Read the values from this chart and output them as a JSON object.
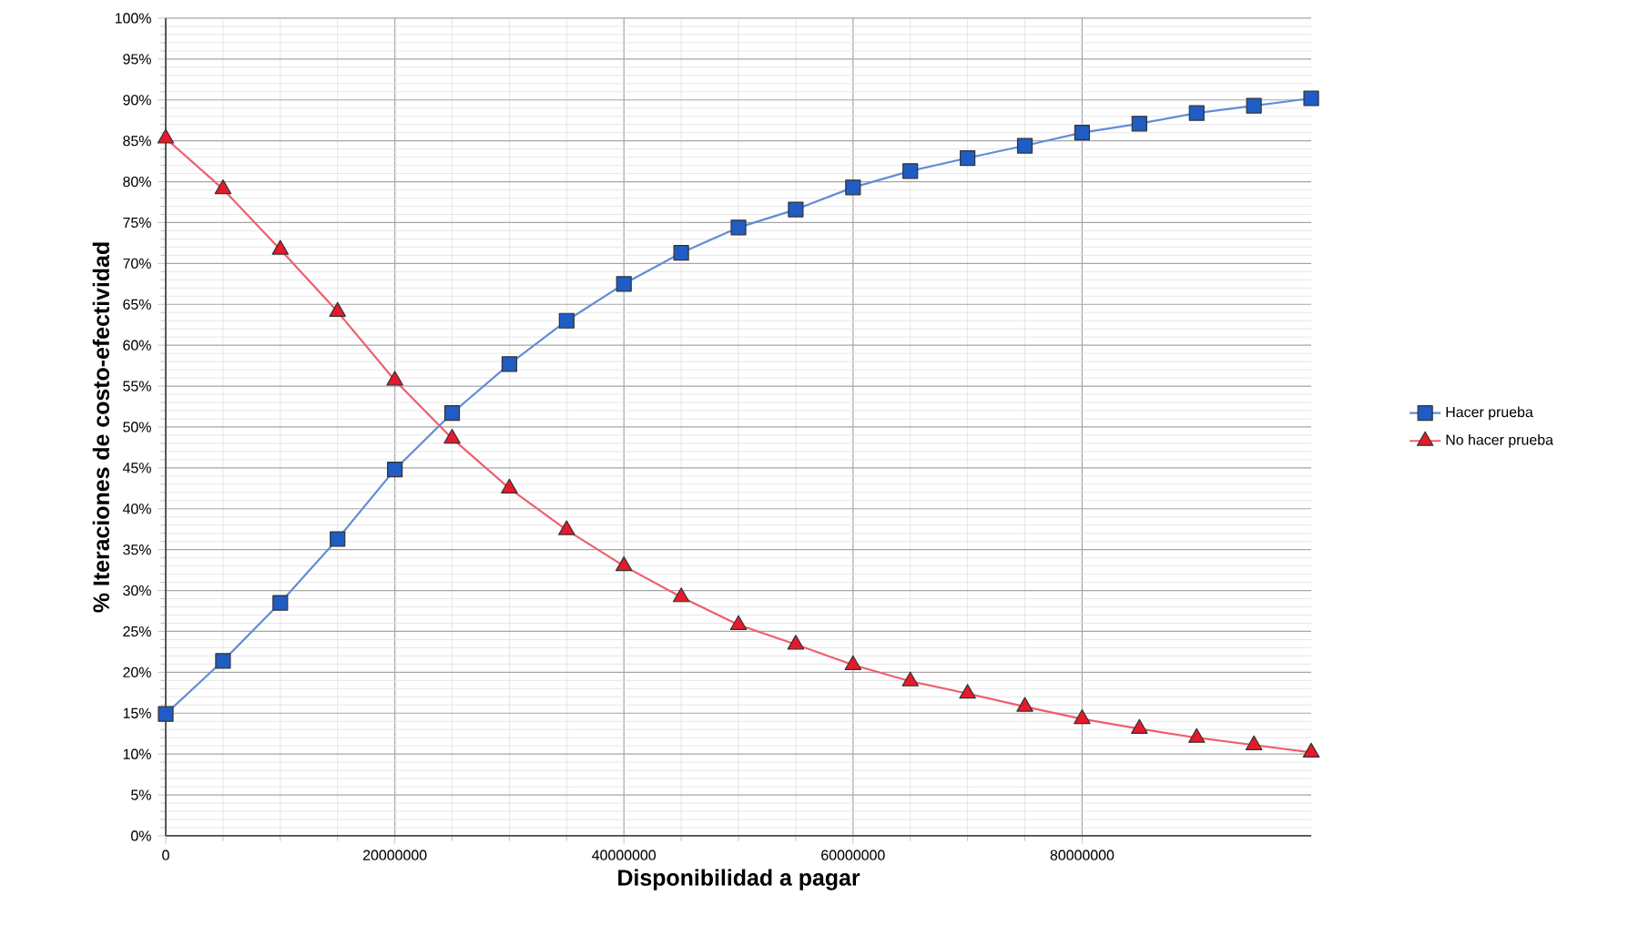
{
  "chart_data": {
    "type": "line",
    "xlabel": "Disponibilidad a pagar",
    "ylabel": "% Iteraciones de costo-efectividad",
    "x": [
      0,
      5000000,
      10000000,
      15000000,
      20000000,
      25000000,
      30000000,
      35000000,
      40000000,
      45000000,
      50000000,
      55000000,
      60000000,
      65000000,
      70000000,
      75000000,
      80000000,
      85000000,
      90000000,
      95000000,
      100000000
    ],
    "series": [
      {
        "name": "Hacer prueba",
        "color": "#1f5cc4",
        "marker": "square",
        "values": [
          14.9,
          21.4,
          28.5,
          36.3,
          44.8,
          51.7,
          57.7,
          63.0,
          67.5,
          71.3,
          74.4,
          76.6,
          79.3,
          81.3,
          82.9,
          84.4,
          86.0,
          87.1,
          88.4,
          89.3,
          90.2
        ]
      },
      {
        "name": "No hacer prueba",
        "color": "#e8192c",
        "marker": "triangle",
        "values": [
          85.3,
          79.1,
          71.7,
          64.1,
          55.7,
          48.6,
          42.5,
          37.4,
          33.0,
          29.2,
          25.8,
          23.4,
          20.9,
          18.9,
          17.4,
          15.8,
          14.3,
          13.1,
          12.0,
          11.1,
          10.2
        ]
      }
    ],
    "xlim": [
      0,
      100000000
    ],
    "xticks": [
      0,
      20000000,
      40000000,
      60000000,
      80000000
    ],
    "ylim": [
      0,
      100
    ],
    "yticks": [
      {
        "value": 0,
        "label": "0%"
      },
      {
        "value": 5,
        "label": "5%"
      },
      {
        "value": 10,
        "label": "10%"
      },
      {
        "value": 15,
        "label": "15%"
      },
      {
        "value": 20,
        "label": "20%"
      },
      {
        "value": 25,
        "label": "25%"
      },
      {
        "value": 30,
        "label": "30%"
      },
      {
        "value": 35,
        "label": "35%"
      },
      {
        "value": 40,
        "label": "40%"
      },
      {
        "value": 45,
        "label": "45%"
      },
      {
        "value": 50,
        "label": "50%"
      },
      {
        "value": 55,
        "label": "55%"
      },
      {
        "value": 60,
        "label": "60%"
      },
      {
        "value": 65,
        "label": "65%"
      },
      {
        "value": 70,
        "label": "70%"
      },
      {
        "value": 75,
        "label": "75%"
      },
      {
        "value": 80,
        "label": "80%"
      },
      {
        "value": 85,
        "label": "85%"
      },
      {
        "value": 90,
        "label": "90%"
      },
      {
        "value": 95,
        "label": "95%"
      },
      {
        "value": 100,
        "label": "100%"
      }
    ],
    "grid": true,
    "legend": "right",
    "line_style": "solid"
  }
}
